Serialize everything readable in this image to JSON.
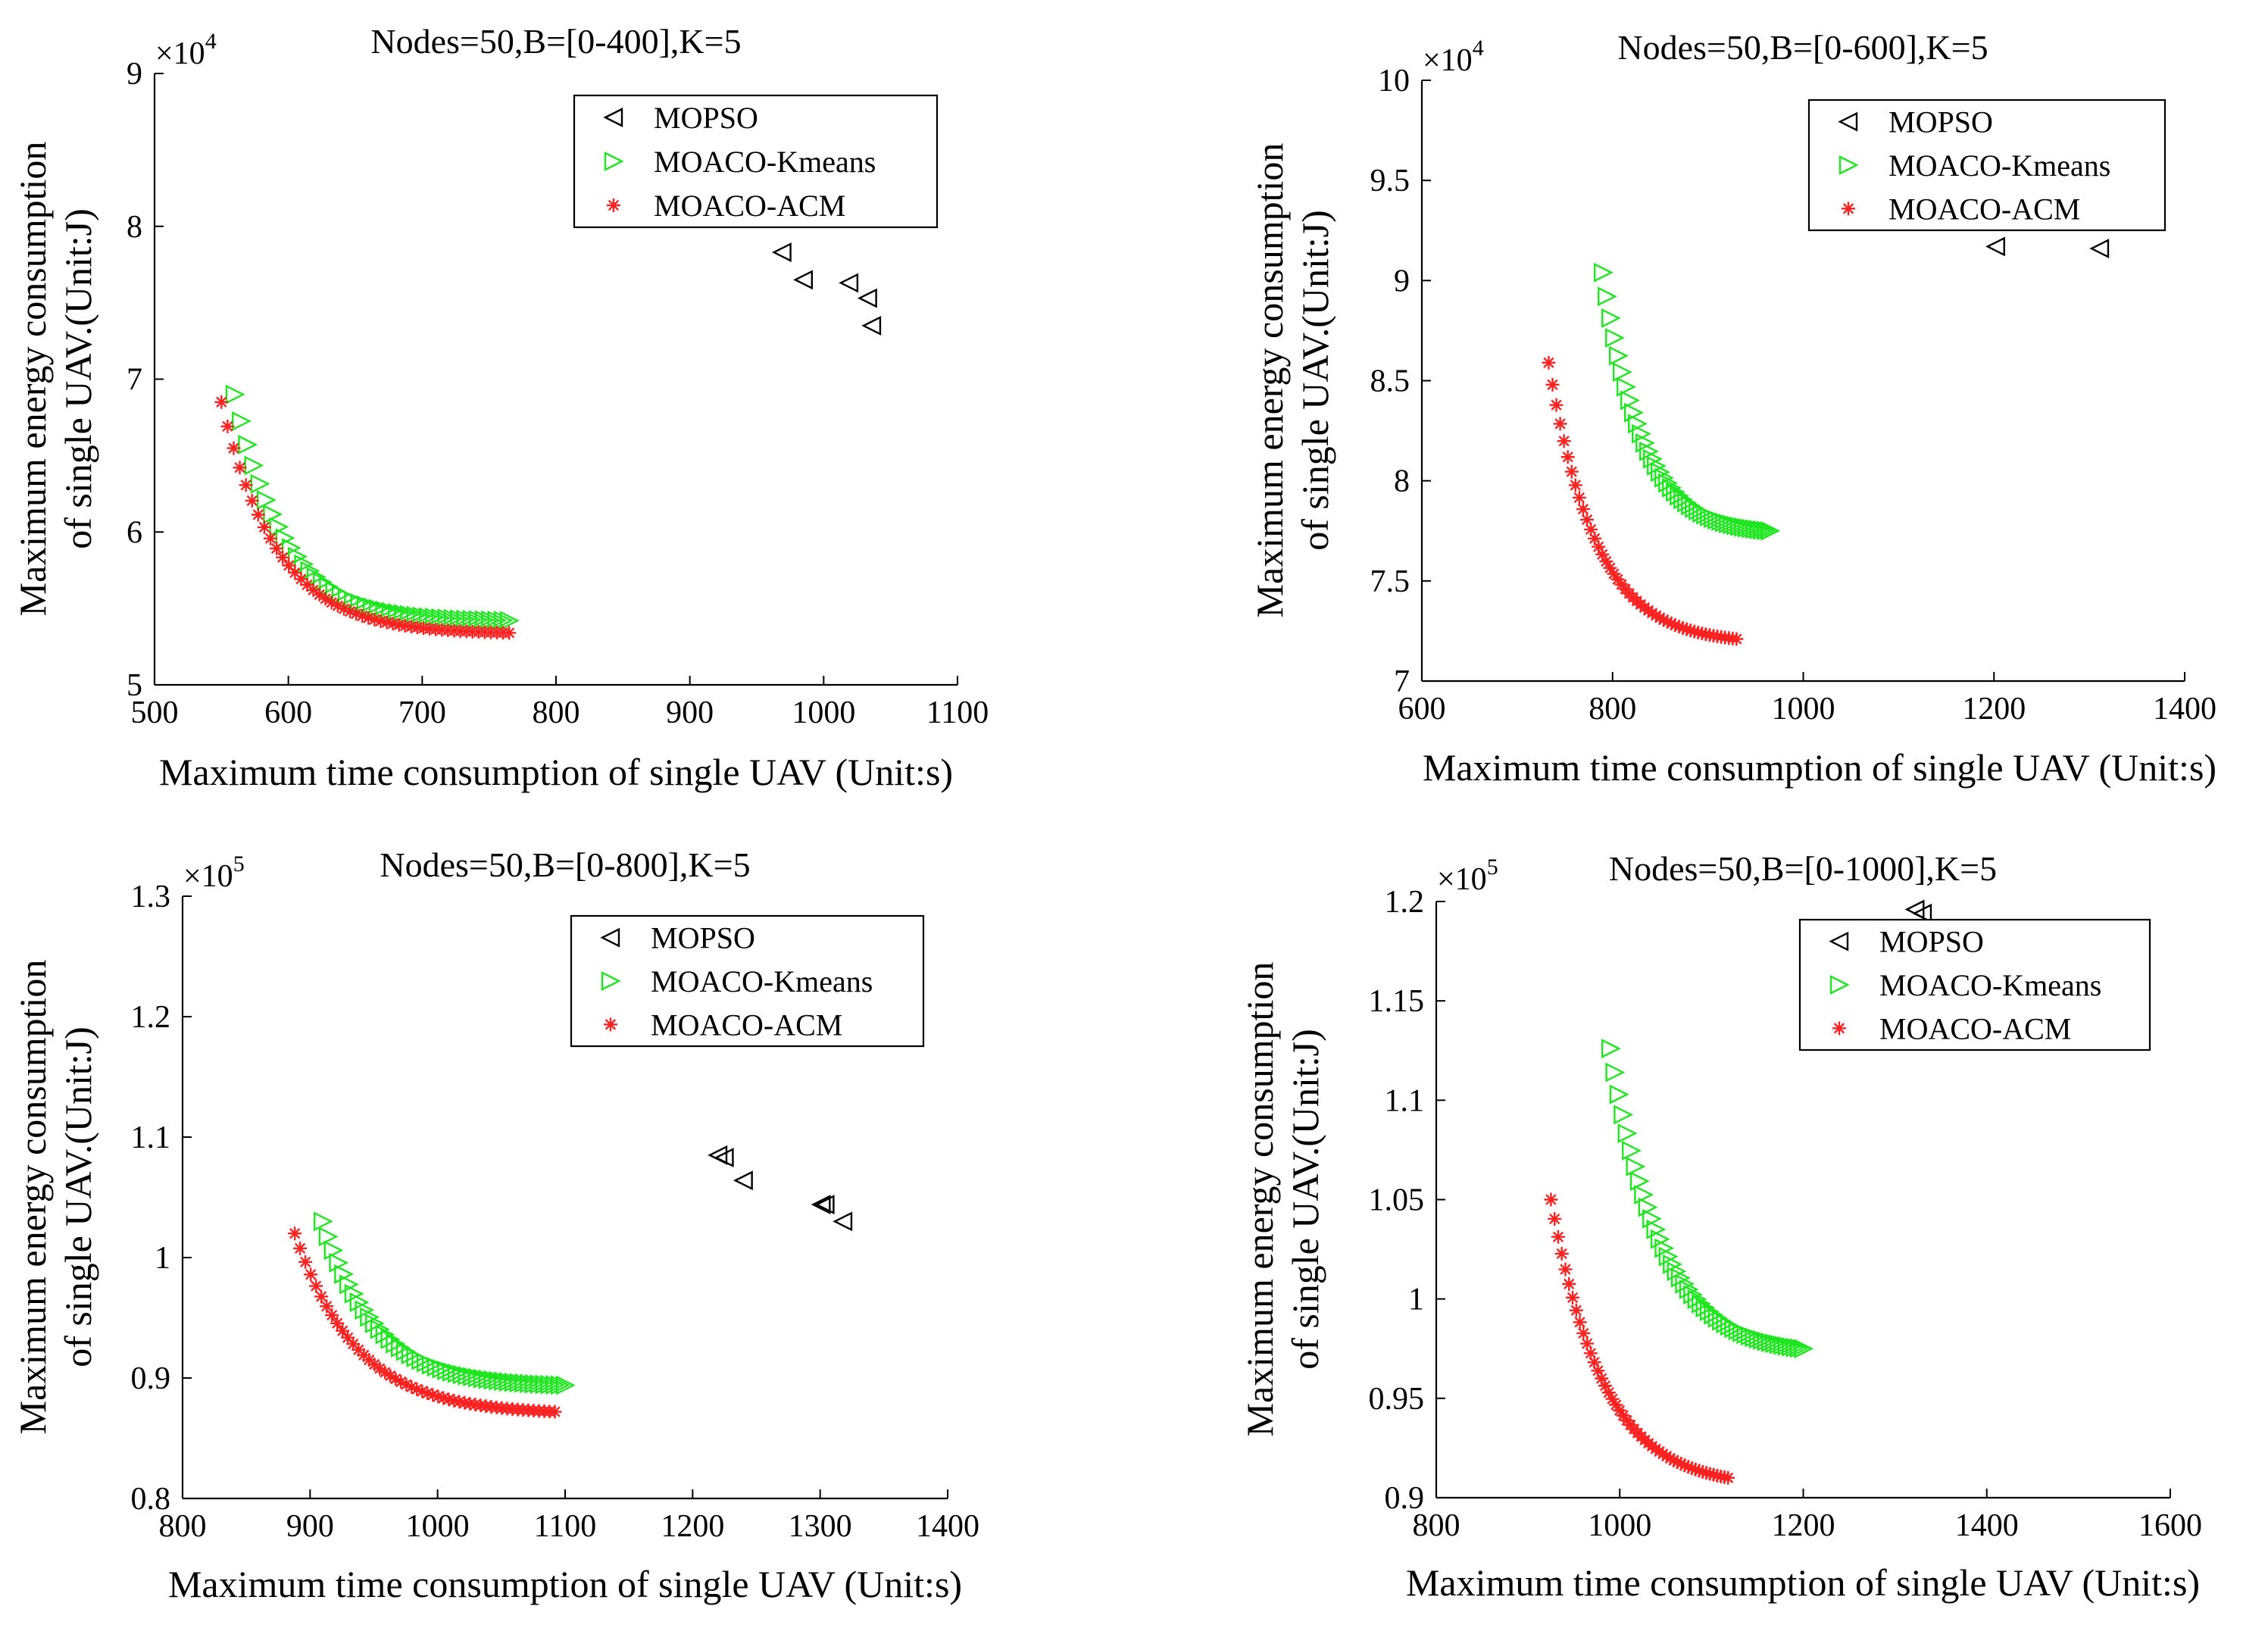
{
  "chart_data": [
    {
      "type": "scatter",
      "title": "Nodes=50,B=[0-400],K=5",
      "xlabel": "Maximum time consumption of single UAV (Unit:s)",
      "ylabel_line1": "Maximum energy consumption",
      "ylabel_line2": "of single UAV.(Unit:J)",
      "xlim": [
        500,
        1100
      ],
      "ylim": [
        5,
        9
      ],
      "xticks": [
        500,
        600,
        700,
        800,
        900,
        1000,
        1100
      ],
      "yticks": [
        5,
        6,
        7,
        8,
        9
      ],
      "xtick_labels": [
        "500",
        "600",
        "700",
        "800",
        "900",
        "1000",
        "1100"
      ],
      "ytick_labels": [
        "5",
        "6",
        "7",
        "8",
        "9"
      ],
      "y_multiplier": "×10",
      "y_exponent": "4",
      "legend": "top-right",
      "series": [
        {
          "name": "MOPSO",
          "marker": "triangle-left",
          "color": "#000000",
          "points": [
            [
              969,
              7.83
            ],
            [
              985,
              7.65
            ],
            [
              1019,
              7.63
            ],
            [
              1033,
              7.53
            ],
            [
              1036,
              7.35
            ]
          ]
        },
        {
          "name": "MOACO-Kmeans",
          "marker": "triangle-right",
          "color": "#1ee61e",
          "curve": {
            "x0": 560,
            "x1": 765,
            "y0": 6.9,
            "y1": 5.42,
            "k": 5.5,
            "n": 45
          }
        },
        {
          "name": "MOACO-ACM",
          "marker": "star",
          "color": "#ff2020",
          "curve": {
            "x0": 550,
            "x1": 765,
            "y0": 6.85,
            "y1": 5.34,
            "k": 5.2,
            "n": 48
          }
        }
      ]
    },
    {
      "type": "scatter",
      "title": "Nodes=50,B=[0-600],K=5",
      "xlabel": "Maximum time consumption of single UAV (Unit:s)",
      "ylabel_line1": "Maximum energy consumption",
      "ylabel_line2": "of single UAV.(Unit:J)",
      "xlim": [
        600,
        1400
      ],
      "ylim": [
        7,
        10
      ],
      "xticks": [
        600,
        800,
        1000,
        1200,
        1400
      ],
      "yticks": [
        7,
        7.5,
        8,
        8.5,
        9,
        9.5,
        10
      ],
      "xtick_labels": [
        "600",
        "800",
        "1000",
        "1200",
        "1400"
      ],
      "ytick_labels": [
        "7",
        "7.5",
        "8",
        "8.5",
        "9",
        "9.5",
        "10"
      ],
      "y_multiplier": "×10",
      "y_exponent": "4",
      "legend": "top-right",
      "series": [
        {
          "name": "MOPSO",
          "marker": "triangle-left",
          "color": "#000000",
          "points": [
            [
              1202,
              9.17
            ],
            [
              1311,
              9.16
            ]
          ]
        },
        {
          "name": "MOACO-Kmeans",
          "marker": "triangle-right",
          "color": "#1ee61e",
          "curve": {
            "x0": 790,
            "x1": 965,
            "y0": 9.04,
            "y1": 7.75,
            "k": 4.2,
            "n": 45
          }
        },
        {
          "name": "MOACO-ACM",
          "marker": "star",
          "color": "#ff2020",
          "curve": {
            "x0": 733,
            "x1": 930,
            "y0": 8.59,
            "y1": 7.21,
            "k": 4.0,
            "n": 50
          }
        }
      ]
    },
    {
      "type": "scatter",
      "title": "Nodes=50,B=[0-800],K=5",
      "xlabel": "Maximum time consumption of single UAV (Unit:s)",
      "ylabel_line1": "Maximum energy consumption",
      "ylabel_line2": "of single UAV.(Unit:J)",
      "xlim": [
        800,
        1400
      ],
      "ylim": [
        0.8,
        1.3
      ],
      "xticks": [
        800,
        900,
        1000,
        1100,
        1200,
        1300,
        1400
      ],
      "yticks": [
        0.8,
        0.9,
        1.0,
        1.1,
        1.2,
        1.3
      ],
      "xtick_labels": [
        "800",
        "900",
        "1000",
        "1100",
        "1200",
        "1300",
        "1400"
      ],
      "ytick_labels": [
        "0.8",
        "0.9",
        "1",
        "1.1",
        "1.2",
        "1.3"
      ],
      "y_multiplier": "×10",
      "y_exponent": "5",
      "legend": "top-right",
      "series": [
        {
          "name": "MOPSO",
          "marker": "triangle-left",
          "color": "#000000",
          "points": [
            [
              1220,
              1.085
            ],
            [
              1225,
              1.083
            ],
            [
              1240,
              1.064
            ],
            [
              1301,
              1.044
            ],
            [
              1304,
              1.044
            ],
            [
              1318,
              1.03
            ]
          ]
        },
        {
          "name": "MOACO-Kmeans",
          "marker": "triangle-right",
          "color": "#1ee61e",
          "curve": {
            "x0": 910,
            "x1": 1100,
            "y0": 1.03,
            "y1": 0.894,
            "k": 4.5,
            "n": 48
          }
        },
        {
          "name": "MOACO-ACM",
          "marker": "star",
          "color": "#ff2020",
          "curve": {
            "x0": 888,
            "x1": 1092,
            "y0": 1.02,
            "y1": 0.872,
            "k": 4.2,
            "n": 50
          }
        }
      ]
    },
    {
      "type": "scatter",
      "title": "Nodes=50,B=[0-1000],K=5",
      "xlabel": "Maximum time consumption of single UAV (Unit:s)",
      "ylabel_line1": "Maximum energy consumption",
      "ylabel_line2": "of single UAV.(Unit:J)",
      "xlim": [
        800,
        1600
      ],
      "ylim": [
        0.9,
        1.2
      ],
      "xticks": [
        800,
        1000,
        1200,
        1400,
        1600
      ],
      "yticks": [
        0.9,
        0.95,
        1.0,
        1.05,
        1.1,
        1.15,
        1.2
      ],
      "xtick_labels": [
        "800",
        "1000",
        "1200",
        "1400",
        "1600"
      ],
      "ytick_labels": [
        "0.9",
        "0.95",
        "1",
        "1.05",
        "1.1",
        "1.15",
        "1.2"
      ],
      "y_multiplier": "×10",
      "y_exponent": "5",
      "legend": "top-right",
      "series": [
        {
          "name": "MOPSO",
          "marker": "triangle-left",
          "color": "#000000",
          "points": [
            [
              1322,
              1.196
            ],
            [
              1330,
              1.194
            ]
          ]
        },
        {
          "name": "MOACO-Kmeans",
          "marker": "triangle-right",
          "color": "#1ee61e",
          "curve": {
            "x0": 990,
            "x1": 1200,
            "y0": 1.126,
            "y1": 0.975,
            "k": 3.8,
            "n": 48
          }
        },
        {
          "name": "MOACO-ACM",
          "marker": "star",
          "color": "#ff2020",
          "curve": {
            "x0": 925,
            "x1": 1118,
            "y0": 1.05,
            "y1": 0.91,
            "k": 3.4,
            "n": 50
          }
        }
      ]
    }
  ]
}
